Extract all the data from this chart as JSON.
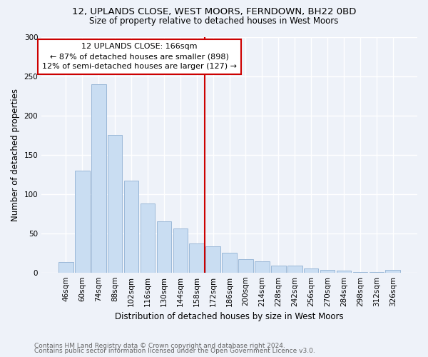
{
  "title1": "12, UPLANDS CLOSE, WEST MOORS, FERNDOWN, BH22 0BD",
  "title2": "Size of property relative to detached houses in West Moors",
  "xlabel": "Distribution of detached houses by size in West Moors",
  "ylabel": "Number of detached properties",
  "bar_labels": [
    "46sqm",
    "60sqm",
    "74sqm",
    "88sqm",
    "102sqm",
    "116sqm",
    "130sqm",
    "144sqm",
    "158sqm",
    "172sqm",
    "186sqm",
    "200sqm",
    "214sqm",
    "228sqm",
    "242sqm",
    "256sqm",
    "270sqm",
    "284sqm",
    "298sqm",
    "312sqm",
    "326sqm"
  ],
  "bar_values": [
    13,
    130,
    240,
    175,
    117,
    88,
    65,
    56,
    37,
    33,
    25,
    17,
    14,
    9,
    9,
    5,
    3,
    2,
    1,
    1,
    3
  ],
  "bar_color": "#c9ddf2",
  "bar_edge_color": "#9ab8d8",
  "vline_color": "#cc0000",
  "annotation_text": "12 UPLANDS CLOSE: 166sqm\n← 87% of detached houses are smaller (898)\n12% of semi-detached houses are larger (127) →",
  "annotation_box_color": "#ffffff",
  "annotation_box_edge": "#cc0000",
  "ylim": [
    0,
    300
  ],
  "yticks": [
    0,
    50,
    100,
    150,
    200,
    250,
    300
  ],
  "footer1": "Contains HM Land Registry data © Crown copyright and database right 2024.",
  "footer2": "Contains public sector information licensed under the Open Government Licence v3.0.",
  "bg_color": "#eef2f9",
  "plot_bg_color": "#eef2f9",
  "title1_fontsize": 9.5,
  "title2_fontsize": 8.5,
  "xlabel_fontsize": 8.5,
  "ylabel_fontsize": 8.5,
  "tick_fontsize": 7.5,
  "annotation_fontsize": 8,
  "footer_fontsize": 6.5
}
